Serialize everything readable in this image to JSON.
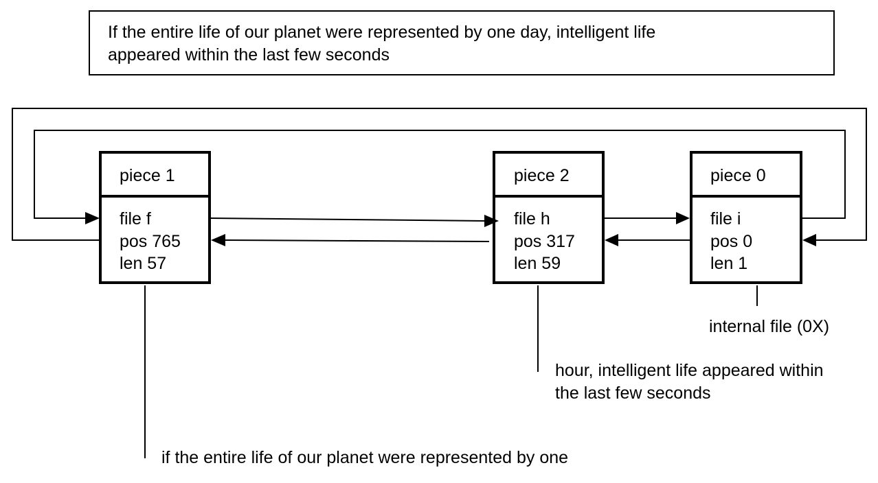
{
  "caption": {
    "line1": "If the entire life of our planet were represented by one day, intelligent life",
    "line2": "appeared within the last few seconds"
  },
  "pieces": [
    {
      "title": "piece 1",
      "file": "file f",
      "pos": "pos 765",
      "len": "len 57"
    },
    {
      "title": "piece 2",
      "file": "file h",
      "pos": "pos 317",
      "len": "len 59"
    },
    {
      "title": "piece 0",
      "file": "file i",
      "pos": "pos 0",
      "len": "len 1"
    }
  ],
  "annotations": {
    "internal_file": "internal file (0X)",
    "piece2_text": {
      "line1": "hour, intelligent life appeared within",
      "line2": "the last few seconds"
    },
    "piece1_text": "if the entire life of our planet were represented by one"
  }
}
